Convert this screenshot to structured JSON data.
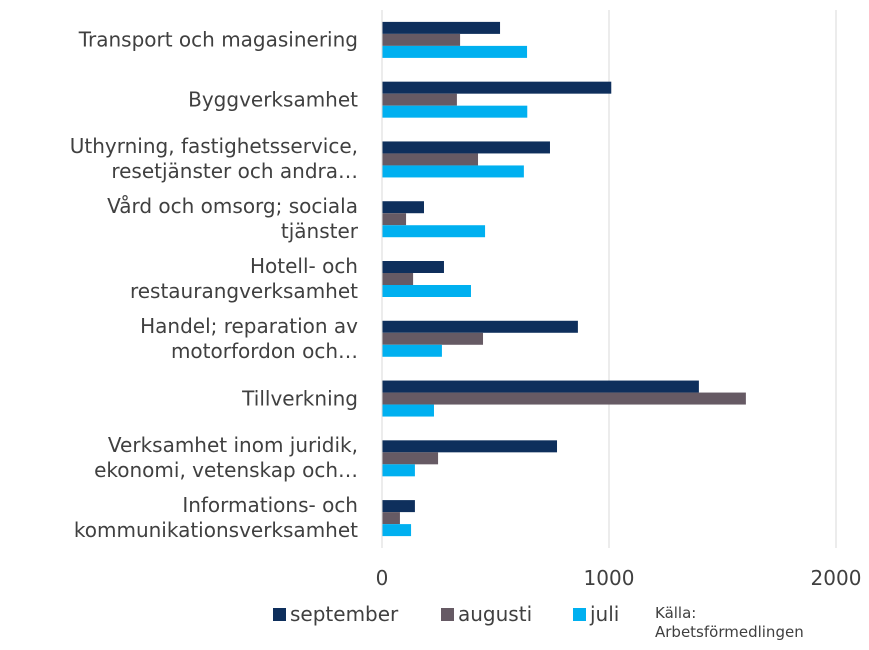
{
  "chart_data": {
    "type": "barh",
    "categories": [
      "Transport och magasinering",
      "Byggverksamhet",
      "Uthyrning, fastighetsservice,\nresetjänster och andra…",
      "Vård och omsorg; sociala\ntjänster",
      "Hotell- och\nrestaurangverksamhet",
      "Handel; reparation av\nmotorfordon och…",
      "Tillverkning",
      "Verksamhet inom juridik,\nekonomi, vetenskap och…",
      "Informations- och\nkommunikationsverksamhet"
    ],
    "series": [
      {
        "name": "september",
        "color": "#0e2f5c",
        "values": [
          520,
          1010,
          740,
          185,
          273,
          863,
          1396,
          771,
          145
        ]
      },
      {
        "name": "augusti",
        "color": "#665a64",
        "values": [
          344,
          330,
          423,
          106,
          137,
          445,
          1603,
          247,
          79
        ]
      },
      {
        "name": "juli",
        "color": "#00b0f0",
        "values": [
          639,
          640,
          625,
          454,
          392,
          264,
          229,
          145,
          128
        ]
      }
    ],
    "xlim": [
      0,
      2000
    ],
    "xticks": [
      0,
      1000,
      2000
    ],
    "grid": true,
    "annotation": "Källa:\nArbetsförmedlingen"
  }
}
